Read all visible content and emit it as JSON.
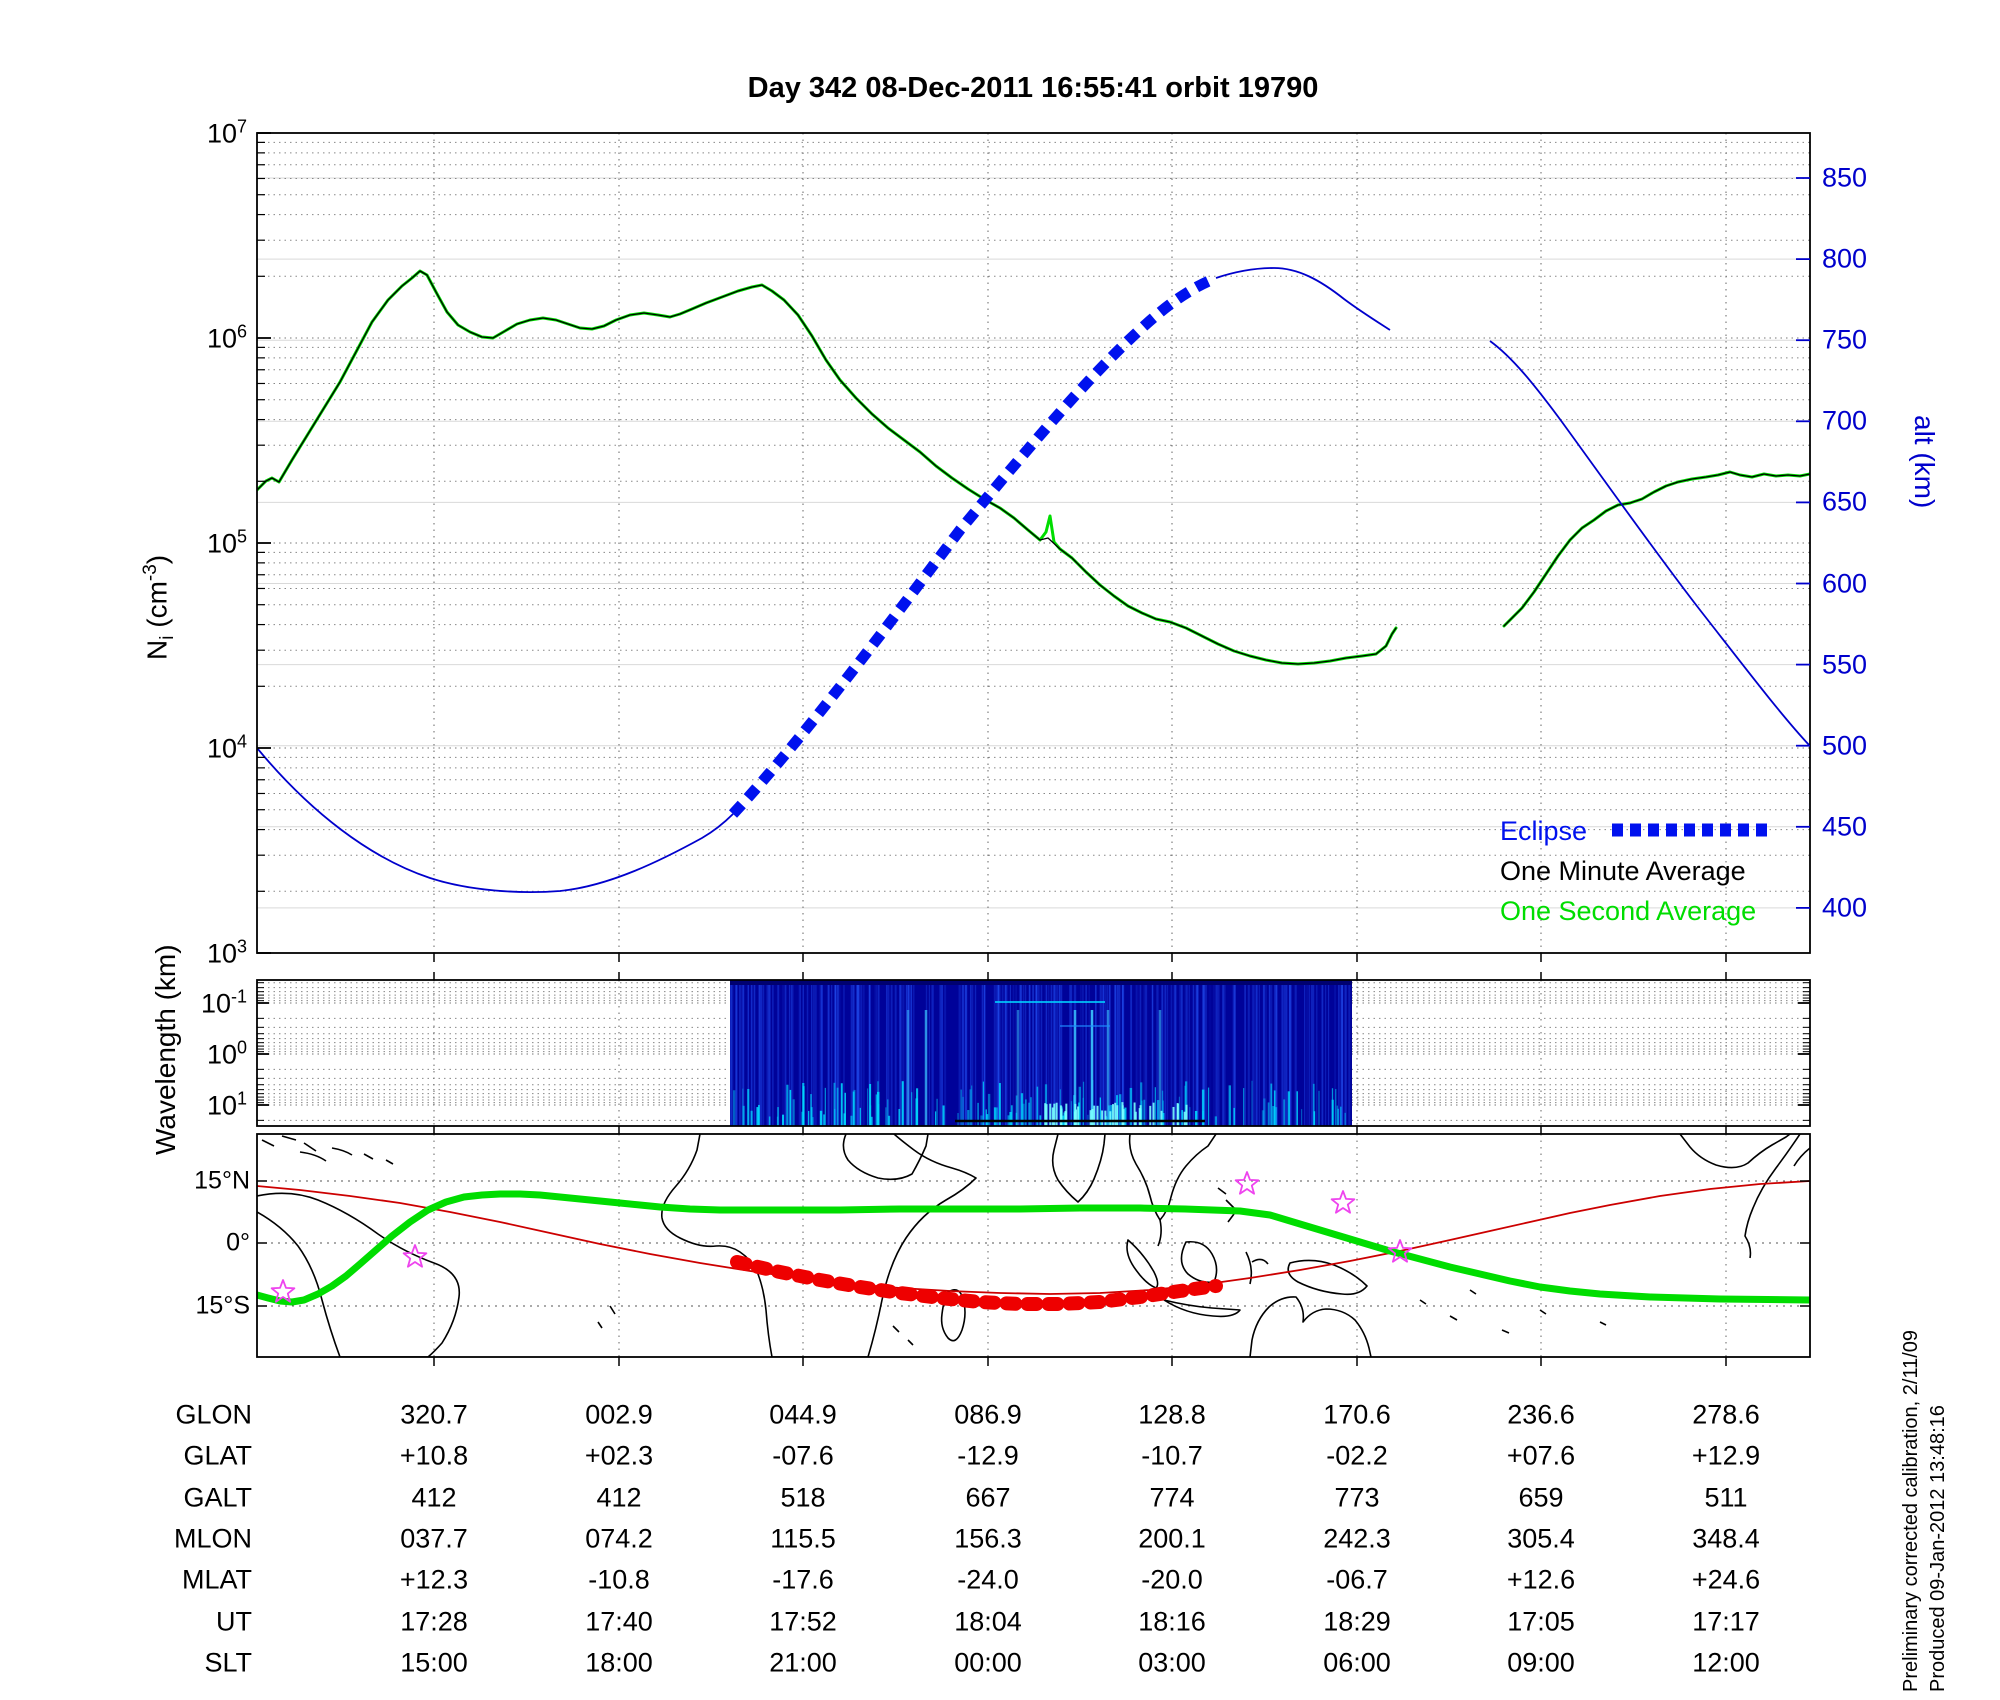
{
  "title": "Day 342  08-Dec-2011 16:55:41   orbit 19790",
  "colors": {
    "altitude_blue": "#0000cc",
    "eclipse_blue": "#0011ee",
    "one_second_green": "#00dd00",
    "one_minute_black": "#000000",
    "track_green": "#00dd00",
    "eclipse_track_red": "#ee0000",
    "magnetic_equator_red": "#cc0000",
    "star_magenta": "#ee44ee",
    "spectrogram_navy": "#000299"
  },
  "top_panel": {
    "ylabel_left_base": "N",
    "ylabel_left_sub": "i",
    "ylabel_left_unit_pre": " (cm",
    "ylabel_left_unit_sup": "-3",
    "ylabel_left_unit_post": ")",
    "left_tick_exps": [
      "7",
      "6",
      "5",
      "4",
      "3"
    ],
    "right_ticks": [
      "850",
      "800",
      "750",
      "700",
      "650",
      "600",
      "550",
      "500",
      "450",
      "400"
    ],
    "right_label": "alt (km)",
    "legend": {
      "eclipse_label": "Eclipse",
      "one_minute_label": "One Minute Average",
      "one_second_label": "One Second Average"
    }
  },
  "middle_panel": {
    "ylabel": "Wavelength (km)",
    "tick_exps": [
      "-1",
      "0",
      "1"
    ]
  },
  "map_panel": {
    "lat_labels": [
      "15°N",
      "0°",
      "15°S"
    ]
  },
  "table": {
    "rows": [
      {
        "label": "GLON",
        "values": [
          "320.7",
          "002.9",
          "044.9",
          "086.9",
          "128.8",
          "170.6",
          "236.6",
          "278.6"
        ]
      },
      {
        "label": "GLAT",
        "values": [
          "+10.8",
          "+02.3",
          "-07.6",
          "-12.9",
          "-10.7",
          "-02.2",
          "+07.6",
          "+12.9"
        ]
      },
      {
        "label": "GALT",
        "values": [
          "412",
          "412",
          "518",
          "667",
          "774",
          "773",
          "659",
          "511"
        ]
      },
      {
        "label": "MLON",
        "values": [
          "037.7",
          "074.2",
          "115.5",
          "156.3",
          "200.1",
          "242.3",
          "305.4",
          "348.4"
        ]
      },
      {
        "label": "MLAT",
        "values": [
          "+12.3",
          "-10.8",
          "-17.6",
          "-24.0",
          "-20.0",
          "-06.7",
          "+12.6",
          "+24.6"
        ]
      },
      {
        "label": "UT",
        "values": [
          "17:28",
          "17:40",
          "17:52",
          "18:04",
          "18:16",
          "18:29",
          "17:05",
          "17:17"
        ]
      },
      {
        "label": "SLT",
        "values": [
          "15:00",
          "18:00",
          "21:00",
          "00:00",
          "03:00",
          "06:00",
          "09:00",
          "12:00"
        ]
      }
    ]
  },
  "sidebar": {
    "line1": "Preliminary corrected calibration, 2/11/09",
    "line2": "Produced 09-Jan-2012 13:48:16"
  },
  "chart_data": [
    {
      "type": "line",
      "title": "Day 342 08-Dec-2011 16:55:41 orbit 19790",
      "xlabel": "UT (see table)",
      "x": [
        "17:28",
        "17:40",
        "17:52",
        "18:04",
        "18:16",
        "18:29",
        "17:05",
        "17:17"
      ],
      "left_axis": {
        "label": "Ni (cm^-3)",
        "scale": "log",
        "range": [
          1000,
          10000000
        ]
      },
      "right_axis": {
        "label": "alt (km)",
        "scale": "linear",
        "range": [
          390,
          860
        ],
        "ticks": [
          850,
          800,
          750,
          700,
          650,
          600,
          550,
          500,
          450,
          400
        ]
      },
      "grid": true,
      "legend_position": "lower right",
      "series": [
        {
          "name": "One Second Average",
          "axis": "left",
          "color": "#00dd00",
          "values": [
            2000000,
            1100000,
            1050000,
            160000,
            44000,
            27000,
            100000,
            210000
          ],
          "note": "ion density, thin green trace with peak 2.2e6 near 17:28 and minimum 2.5e4 near 18:29; data gap between 18:35 and 17:00"
        },
        {
          "name": "One Minute Average",
          "axis": "left",
          "color": "#000000",
          "values": [
            2000000,
            1100000,
            1050000,
            160000,
            44000,
            27000,
            100000,
            210000
          ],
          "note": "black overlay of the green trace"
        },
        {
          "name": "altitude",
          "axis": "right",
          "color": "#0000cc",
          "values": [
            412,
            412,
            518,
            667,
            774,
            773,
            659,
            511
          ],
          "note": "orbit altitude, min ~410 km near 17:35, max ~790 km near 18:22"
        },
        {
          "name": "Eclipse",
          "axis": "right",
          "color": "#0011ee",
          "note": "thick dashed segment of the altitude curve from UT ~17:50 to ~18:14"
        }
      ]
    },
    {
      "type": "heatmap",
      "ylabel": "Wavelength (km)",
      "y_scale": "log-inverted",
      "y_ticks": [
        0.1,
        1,
        10
      ],
      "note": "VLF spectrogram; deep blue block with cyan streaks (brightest near long wavelengths) present only between UT ~17:50 and ~18:14"
    },
    {
      "type": "map",
      "lat_ticks": [
        "15N",
        "0",
        "15S"
      ],
      "tracks": [
        {
          "name": "ground track",
          "color": "#00dd00",
          "note": "thick green, from 15S at left up to ~8N over Africa/Asia then back to 15S at right"
        },
        {
          "name": "eclipse ground track",
          "color": "#ee0000",
          "note": "thick dashed red, Indian Ocean from ~40E to ~150E near 10-13S"
        },
        {
          "name": "magnetic equator",
          "color": "#cc0000",
          "note": "thin red curve"
        },
        {
          "name": "ground stations",
          "marker": "star",
          "color": "#ee44ee",
          "count": 5
        }
      ]
    },
    {
      "type": "table",
      "row_labels": [
        "GLON",
        "GLAT",
        "GALT",
        "MLON",
        "MLAT",
        "UT",
        "SLT"
      ],
      "columns": [
        [
          "320.7",
          "+10.8",
          "412",
          "037.7",
          "+12.3",
          "17:28",
          "15:00"
        ],
        [
          "002.9",
          "+02.3",
          "412",
          "074.2",
          "-10.8",
          "17:40",
          "18:00"
        ],
        [
          "044.9",
          "-07.6",
          "518",
          "115.5",
          "-17.6",
          "17:52",
          "21:00"
        ],
        [
          "086.9",
          "-12.9",
          "667",
          "156.3",
          "-24.0",
          "18:04",
          "00:00"
        ],
        [
          "128.8",
          "-10.7",
          "774",
          "200.1",
          "-20.0",
          "18:16",
          "03:00"
        ],
        [
          "170.6",
          "-02.2",
          "773",
          "242.3",
          "-06.7",
          "18:29",
          "06:00"
        ],
        [
          "236.6",
          "+07.6",
          "659",
          "305.4",
          "+12.6",
          "17:05",
          "09:00"
        ],
        [
          "278.6",
          "+12.9",
          "511",
          "348.4",
          "+24.6",
          "17:17",
          "12:00"
        ]
      ]
    }
  ]
}
